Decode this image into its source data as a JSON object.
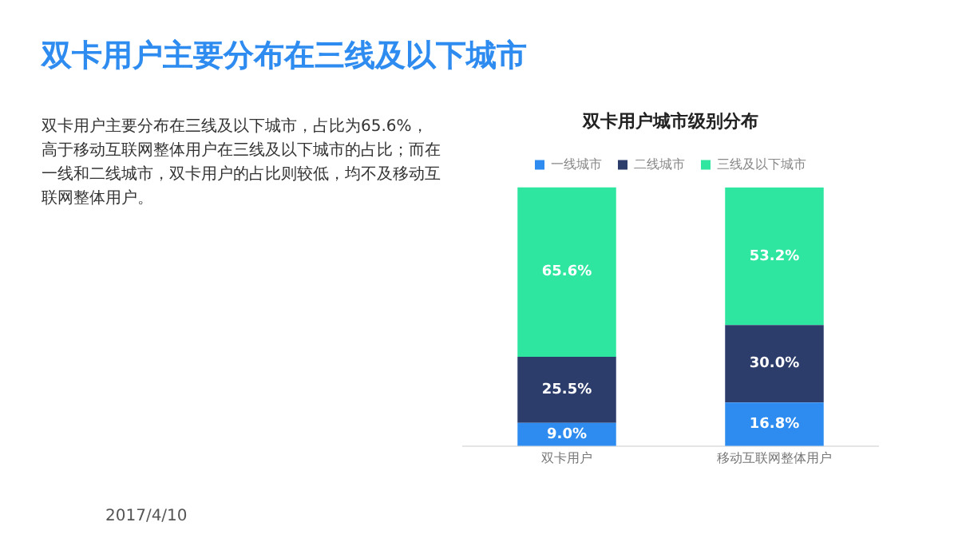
{
  "chart_data": {
    "type": "bar",
    "title": "双卡用户主要分布在三线及以下城市",
    "subtitle": "双卡用户城市级别分布",
    "annotations": [
      "双卡用户主要分布在三线及以下城市，占比为65.6%，高于移动互联网整体用户在三线及以下城市的占比；而在一线和二线城市，双卡用户的占比则较低，均不及移动互联网整体用户。",
      "2017/4/10"
    ],
    "categories": [
      "双卡用户",
      "移动互联网整体用户"
    ],
    "stacked": true,
    "legend": "top",
    "tick_labels": "x",
    "grid": false,
    "series": [
      {
        "name": "一线城市",
        "color": "#2e8cf0",
        "values": [
          9.0,
          16.8
        ],
        "value_labels": [
          "9.0%",
          "16.8%"
        ]
      },
      {
        "name": "二线城市",
        "color": "#2c3d6b",
        "values": [
          25.5,
          30.0
        ],
        "value_labels": [
          "25.5%",
          "30.0%"
        ]
      },
      {
        "name": "三线及以下城市",
        "color": "#2ee6a0",
        "values": [
          65.6,
          53.2
        ],
        "value_labels": [
          "65.6%",
          "53.2%"
        ]
      }
    ]
  }
}
